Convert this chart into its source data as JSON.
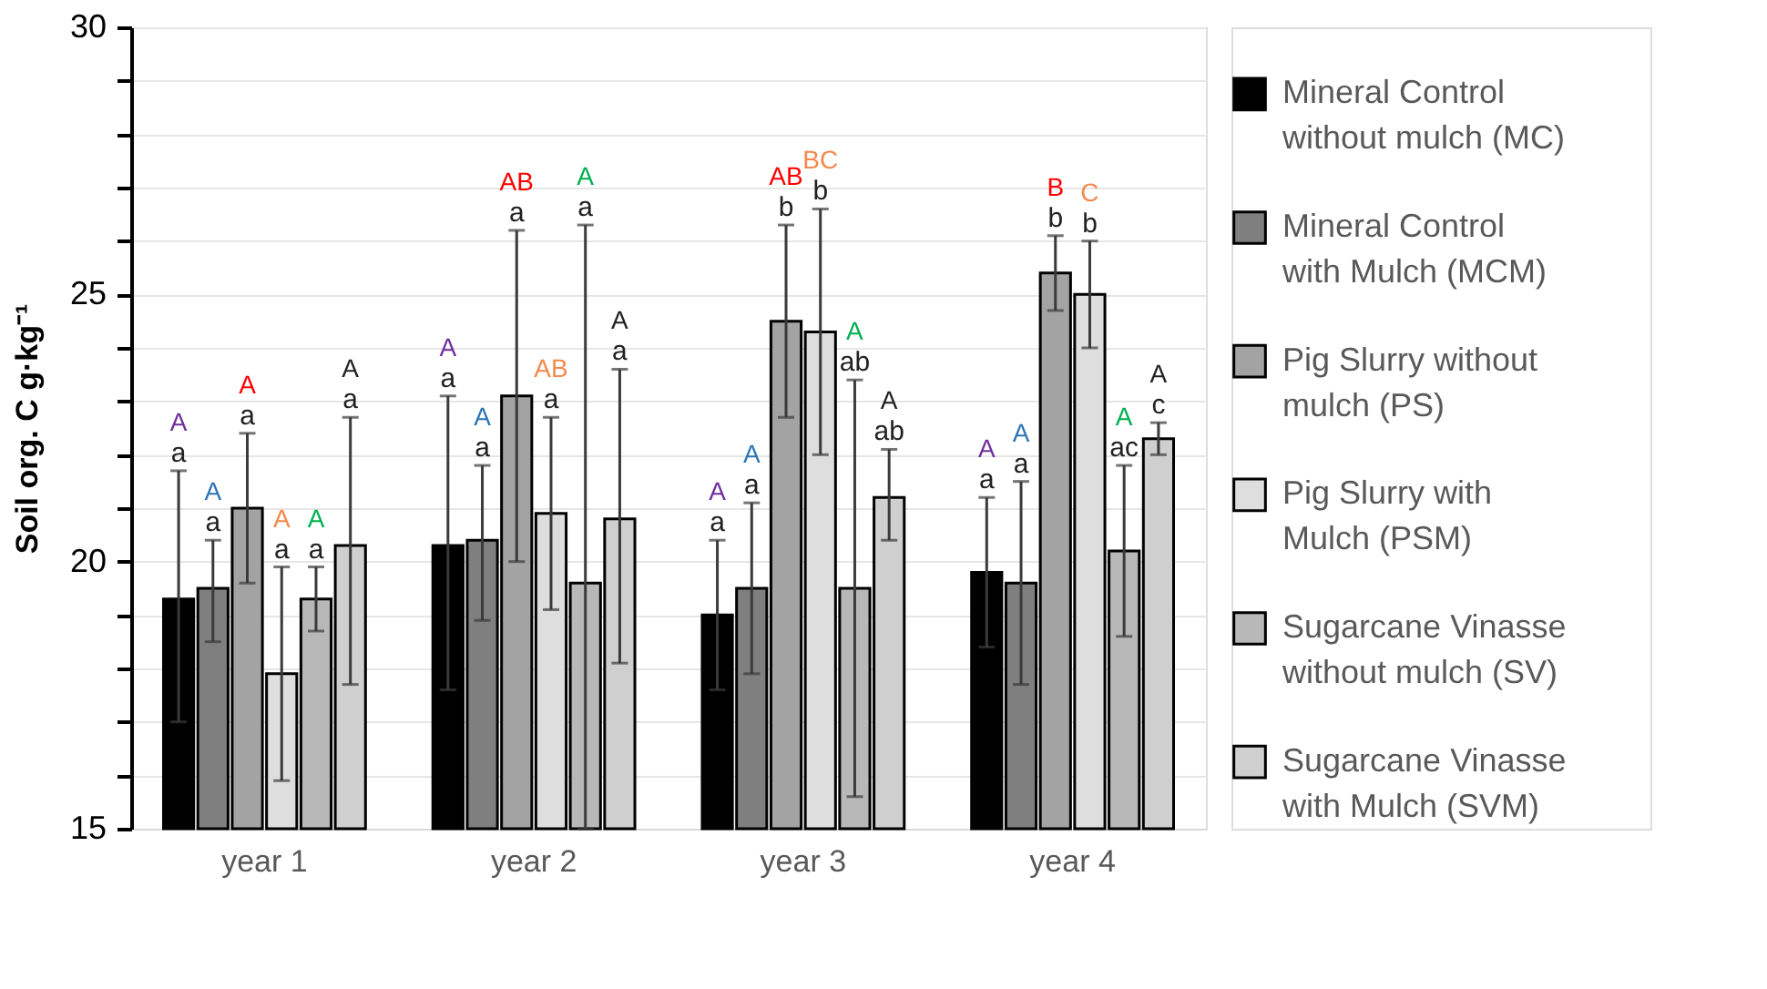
{
  "chart_data": {
    "type": "bar",
    "ylabel": "Soil org. C     g·kg⁻¹",
    "categories": [
      "year 1",
      "year 2",
      "year 3",
      "year 4"
    ],
    "ylim": [
      15,
      30
    ],
    "yticks": [
      15,
      {
        "value": 16,
        "label": null
      },
      {
        "value": 17,
        "label": null
      },
      {
        "value": 18,
        "label": null
      },
      {
        "value": 19,
        "label": null
      },
      20,
      {
        "value": 21,
        "label": null
      },
      {
        "value": 22,
        "label": null
      },
      {
        "value": 23,
        "label": null
      },
      {
        "value": 24,
        "label": null
      },
      25,
      {
        "value": 26,
        "label": null
      },
      {
        "value": 27,
        "label": null
      },
      {
        "value": 28,
        "label": null
      },
      {
        "value": 29,
        "label": null
      },
      30
    ],
    "grid": "y",
    "legend": "right",
    "series": [
      {
        "name": "Mineral Control without mulch (MC)",
        "color": "#000000",
        "values": [
          19.3,
          20.3,
          19.0,
          19.8
        ],
        "errors": [
          [
            17.0,
            21.7
          ],
          [
            17.6,
            23.1
          ],
          [
            17.6,
            20.4
          ],
          [
            18.4,
            21.2
          ]
        ],
        "value_labels": [
          "A\na",
          "A\na",
          "A\na",
          "A\na"
        ]
      },
      {
        "name": "Mineral Control with Mulch (MCM)",
        "color": "#7f7f7f",
        "values": [
          19.5,
          20.4,
          19.5,
          19.6
        ],
        "errors": [
          [
            18.5,
            20.4
          ],
          [
            18.9,
            21.8
          ],
          [
            17.9,
            21.1
          ],
          [
            17.7,
            21.5
          ]
        ],
        "value_labels": [
          "A\na",
          "A\na",
          "A\na",
          "A\na"
        ]
      },
      {
        "name": "Pig Slurry without mulch (PS)",
        "color": "#a3a3a3",
        "values": [
          21.0,
          23.1,
          24.5,
          25.4
        ],
        "errors": [
          [
            19.6,
            22.4
          ],
          [
            20.0,
            26.2
          ],
          [
            22.7,
            26.3
          ],
          [
            24.7,
            26.1
          ]
        ],
        "value_labels": [
          "A\na",
          "AB\na",
          "AB\nb",
          "B\nb"
        ]
      },
      {
        "name": "Pig Slurry with Mulch (PSM)",
        "color": "#dedede",
        "values": [
          17.9,
          20.9,
          24.3,
          25.0
        ],
        "errors": [
          [
            15.9,
            19.9
          ],
          [
            19.1,
            22.7
          ],
          [
            22.0,
            26.6
          ],
          [
            24.0,
            26.0
          ]
        ],
        "value_labels": [
          "A\na",
          "AB\na",
          "BC\nb",
          "C\nb"
        ]
      },
      {
        "name": "Sugarcane Vinasse without mulch (SV)",
        "color": "#b8b8b8",
        "values": [
          19.3,
          19.6,
          19.5,
          20.2
        ],
        "errors": [
          [
            18.7,
            19.9
          ],
          [
            15.0,
            26.3
          ],
          [
            15.6,
            23.4
          ],
          [
            18.6,
            21.8
          ]
        ],
        "value_labels": [
          "A\na",
          "A\na",
          "A\nab",
          "A\nac"
        ]
      },
      {
        "name": "Sugarcane Vinasse with Mulch (SVM)",
        "color": "#cfcfcf",
        "values": [
          20.3,
          20.8,
          21.2,
          22.3
        ],
        "errors": [
          [
            17.7,
            22.7
          ],
          [
            18.1,
            23.6
          ],
          [
            20.4,
            22.1
          ],
          [
            22.0,
            22.6
          ]
        ],
        "value_labels": [
          "A\na",
          "A\na",
          "A\nab",
          "A\nc"
        ]
      }
    ]
  }
}
